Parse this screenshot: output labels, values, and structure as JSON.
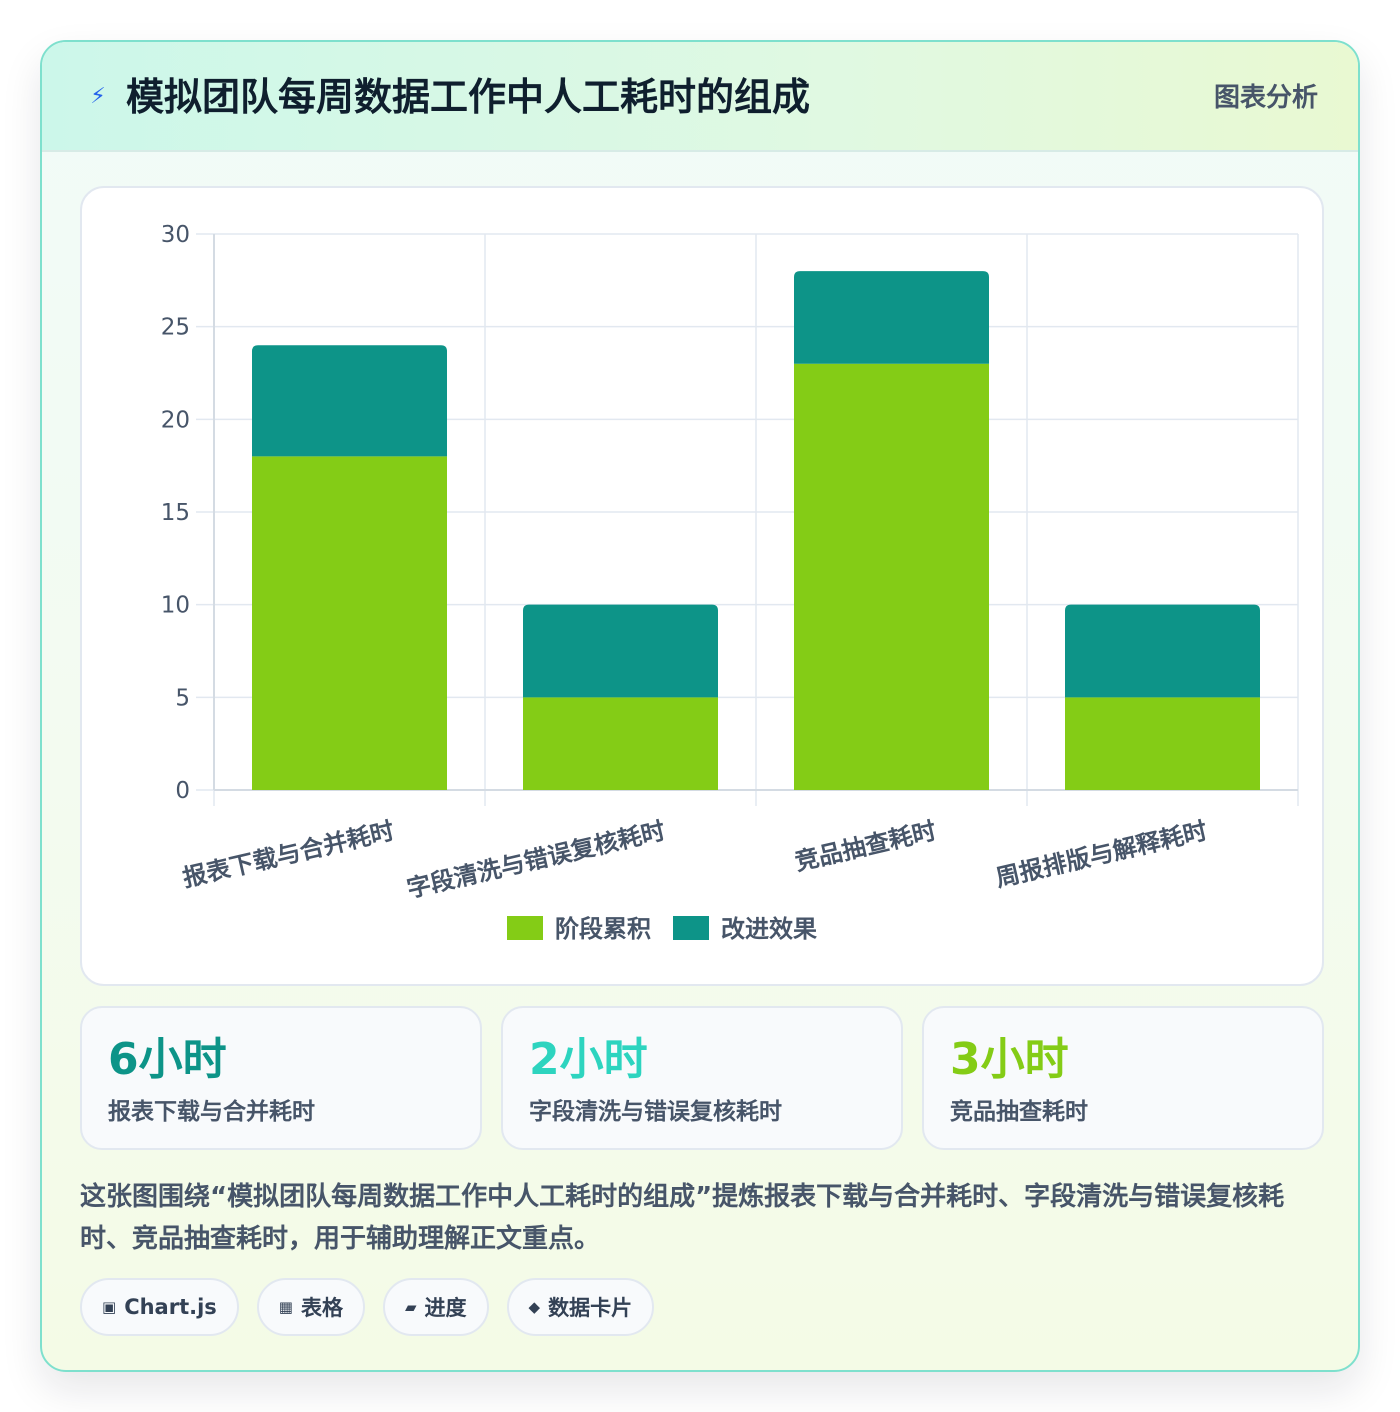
{
  "header": {
    "icon": "lightning-icon",
    "title": "模拟团队每周数据工作中人工耗时的组成",
    "tag": "图表分析"
  },
  "chart_data": {
    "type": "bar",
    "stacked": true,
    "categories": [
      "报表下载与合并耗时",
      "字段清洗与错误复核耗时",
      "竞品抽查耗时",
      "周报排版与解释耗时"
    ],
    "series": [
      {
        "name": "阶段累积",
        "values": [
          18,
          5,
          23,
          5
        ],
        "color": "#84cc16"
      },
      {
        "name": "改进效果",
        "values": [
          6,
          5,
          5,
          5
        ],
        "color": "#0d9488"
      }
    ],
    "ylim": [
      0,
      30
    ],
    "yticks": [
      0,
      5,
      10,
      15,
      20,
      25,
      30
    ],
    "grid": true,
    "legend_position": "bottom"
  },
  "stats": [
    {
      "value": "6小时",
      "label": "报表下载与合并耗时",
      "color": "#0d9488"
    },
    {
      "value": "2小时",
      "label": "字段清洗与错误复核耗时",
      "color": "#2dd4bf"
    },
    {
      "value": "3小时",
      "label": "竞品抽查耗时",
      "color": "#84cc16"
    }
  ],
  "summary": "这张图围绕“模拟团队每周数据工作中人工耗时的组成”提炼报表下载与合并耗时、字段清洗与错误复核耗时、竞品抽查耗时，用于辅助理解正文重点。",
  "pills": [
    {
      "icon": "square-icon",
      "glyph": "▣",
      "label": "Chart.js"
    },
    {
      "icon": "table-icon",
      "glyph": "▦",
      "label": "表格"
    },
    {
      "icon": "progress-icon",
      "glyph": "▰",
      "label": "进度"
    },
    {
      "icon": "diamond-icon",
      "glyph": "◆",
      "label": "数据卡片"
    }
  ]
}
